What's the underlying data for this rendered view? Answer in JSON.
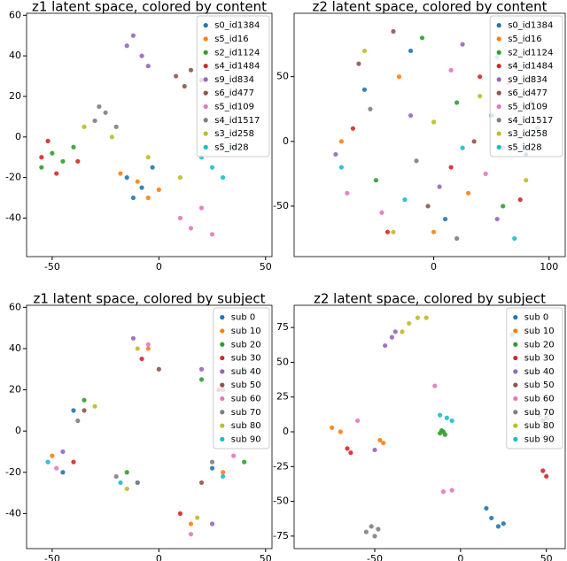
{
  "chart_data": [
    {
      "type": "scatter",
      "title": "z1 latent space, colored by content",
      "legend": "upper right",
      "xlim": [
        -62,
        53
      ],
      "ylim": [
        -59,
        61
      ],
      "xticks": [
        -50,
        0,
        50
      ],
      "yticks": [
        -40,
        -20,
        0,
        20,
        40,
        60
      ],
      "series": [
        {
          "name": "s0_id1384",
          "color": "#1f77b4",
          "x": [
            -15,
            -8,
            -3,
            -12
          ],
          "values": [
            -20,
            -25,
            -15,
            -30
          ]
        },
        {
          "name": "s5_id16",
          "color": "#ff7f0e",
          "x": [
            -10,
            -5,
            -18,
            0
          ],
          "values": [
            -22,
            -30,
            -18,
            -26
          ]
        },
        {
          "name": "s2_id1124",
          "color": "#2ca02c",
          "x": [
            -50,
            -45,
            -40,
            -55
          ],
          "values": [
            -8,
            -12,
            -5,
            -15
          ]
        },
        {
          "name": "s4_id1484",
          "color": "#d62728",
          "x": [
            -55,
            -48,
            -38,
            -52
          ],
          "values": [
            -10,
            -18,
            -12,
            -2
          ]
        },
        {
          "name": "s9_id834",
          "color": "#9467bd",
          "x": [
            -15,
            -8,
            -5,
            -12
          ],
          "values": [
            45,
            40,
            35,
            50
          ]
        },
        {
          "name": "s6_id477",
          "color": "#8c564b",
          "x": [
            8,
            12,
            15,
            20
          ],
          "values": [
            30,
            25,
            33,
            28
          ]
        },
        {
          "name": "s5_id109",
          "color": "#e377c2",
          "x": [
            10,
            15,
            20,
            25
          ],
          "values": [
            -40,
            -45,
            -35,
            -48
          ]
        },
        {
          "name": "s4_id1517",
          "color": "#7f7f7f",
          "x": [
            -30,
            -25,
            -20,
            -28
          ],
          "values": [
            8,
            12,
            5,
            15
          ]
        },
        {
          "name": "s3_id258",
          "color": "#bcbd22",
          "x": [
            -35,
            -22,
            -5,
            10
          ],
          "values": [
            5,
            0,
            -10,
            -20
          ]
        },
        {
          "name": "s5_id28",
          "color": "#17becf",
          "x": [
            20,
            25,
            30,
            35
          ],
          "values": [
            -10,
            -15,
            -20,
            -5
          ]
        }
      ]
    },
    {
      "type": "scatter",
      "title": "z2 latent space, colored by content",
      "legend": "upper right",
      "xlim": [
        -121,
        114
      ],
      "ylim": [
        -89,
        99
      ],
      "xticks": [
        0,
        100
      ],
      "yticks": [
        -50,
        0,
        50
      ],
      "series": [
        {
          "name": "s0_id1384",
          "color": "#1f77b4",
          "x": [
            -60,
            10,
            50,
            -20,
            80
          ],
          "values": [
            40,
            -60,
            20,
            70,
            -10
          ]
        },
        {
          "name": "s5_id16",
          "color": "#ff7f0e",
          "x": [
            -80,
            -30,
            30,
            70,
            0
          ],
          "values": [
            0,
            50,
            -40,
            60,
            -70
          ]
        },
        {
          "name": "s2_id1124",
          "color": "#2ca02c",
          "x": [
            -50,
            20,
            60,
            -10,
            90
          ],
          "values": [
            -30,
            30,
            -50,
            80,
            10
          ]
        },
        {
          "name": "s4_id1484",
          "color": "#d62728",
          "x": [
            -70,
            -40,
            40,
            15,
            75
          ],
          "values": [
            10,
            -70,
            50,
            -20,
            -45
          ]
        },
        {
          "name": "s9_id834",
          "color": "#9467bd",
          "x": [
            -85,
            -20,
            25,
            55,
            5
          ],
          "values": [
            -10,
            20,
            75,
            -60,
            -35
          ]
        },
        {
          "name": "s6_id477",
          "color": "#8c564b",
          "x": [
            -65,
            -5,
            35,
            85,
            -35
          ],
          "values": [
            60,
            -50,
            0,
            30,
            85
          ]
        },
        {
          "name": "s5_id109",
          "color": "#e377c2",
          "x": [
            -45,
            15,
            45,
            -75,
            65
          ],
          "values": [
            -55,
            55,
            -25,
            -40,
            45
          ]
        },
        {
          "name": "s4_id1517",
          "color": "#7f7f7f",
          "x": [
            -55,
            -15,
            20,
            60,
            95
          ],
          "values": [
            25,
            -15,
            -75,
            -5,
            70
          ]
        },
        {
          "name": "s3_id258",
          "color": "#bcbd22",
          "x": [
            -35,
            0,
            40,
            80,
            -60
          ],
          "values": [
            -70,
            15,
            35,
            -30,
            70
          ]
        },
        {
          "name": "s5_id28",
          "color": "#17becf",
          "x": [
            -25,
            25,
            55,
            -80,
            70
          ],
          "values": [
            -45,
            -5,
            65,
            -20,
            -75
          ]
        }
      ]
    },
    {
      "type": "scatter",
      "title": "z1 latent space, colored by subject",
      "legend": "upper right",
      "xlim": [
        -62,
        53
      ],
      "ylim": [
        -57,
        61
      ],
      "xticks": [
        -50,
        0,
        50
      ],
      "yticks": [
        -40,
        -20,
        0,
        20,
        40,
        60
      ],
      "series": [
        {
          "name": "sub 0",
          "color": "#1f77b4",
          "x": [
            -40,
            -10,
            25,
            -45
          ],
          "values": [
            10,
            -25,
            -18,
            -20
          ]
        },
        {
          "name": "sub 10",
          "color": "#ff7f0e",
          "x": [
            -50,
            -5,
            15,
            30
          ],
          "values": [
            -12,
            40,
            -45,
            -20
          ]
        },
        {
          "name": "sub 20",
          "color": "#2ca02c",
          "x": [
            -35,
            -15,
            20,
            40
          ],
          "values": [
            15,
            -20,
            25,
            -15
          ]
        },
        {
          "name": "sub 30",
          "color": "#d62728",
          "x": [
            -8,
            -40,
            10,
            28
          ],
          "values": [
            35,
            -15,
            -40,
            20
          ]
        },
        {
          "name": "sub 40",
          "color": "#9467bd",
          "x": [
            -12,
            -45,
            20,
            25
          ],
          "values": [
            45,
            -10,
            30,
            -45
          ]
        },
        {
          "name": "sub 50",
          "color": "#8c564b",
          "x": [
            0,
            -35,
            30,
            20
          ],
          "values": [
            30,
            10,
            20,
            -25
          ]
        },
        {
          "name": "sub 60",
          "color": "#e377c2",
          "x": [
            -5,
            -48,
            15,
            35
          ],
          "values": [
            42,
            -18,
            -50,
            -12
          ]
        },
        {
          "name": "sub 70",
          "color": "#7f7f7f",
          "x": [
            -20,
            -38,
            -10,
            25
          ],
          "values": [
            -22,
            5,
            -25,
            -15
          ]
        },
        {
          "name": "sub 80",
          "color": "#bcbd22",
          "x": [
            -30,
            -10,
            18,
            -15
          ],
          "values": [
            12,
            40,
            -42,
            -28
          ]
        },
        {
          "name": "sub 90",
          "color": "#17becf",
          "x": [
            -52,
            -18,
            30,
            40
          ],
          "values": [
            -15,
            -25,
            -22,
            30
          ]
        }
      ]
    },
    {
      "type": "scatter",
      "title": "z2 latent space, colored by subject",
      "legend": "upper right",
      "xlim": [
        -97,
        61
      ],
      "ylim": [
        -84,
        91
      ],
      "xticks": [
        -50,
        0,
        50
      ],
      "yticks": [
        -75,
        -50,
        -25,
        0,
        25,
        50,
        75
      ],
      "series": [
        {
          "name": "sub 0",
          "color": "#1f77b4",
          "x": [
            15,
            18,
            22,
            25
          ],
          "values": [
            -55,
            -62,
            -68,
            -66
          ]
        },
        {
          "name": "sub 10",
          "color": "#ff7f0e",
          "x": [
            -75,
            -70,
            -47,
            -45
          ],
          "values": [
            3,
            0,
            -6,
            -8
          ]
        },
        {
          "name": "sub 20",
          "color": "#2ca02c",
          "x": [
            -12,
            -10,
            -9,
            -11
          ],
          "values": [
            -1,
            0,
            -2,
            1
          ]
        },
        {
          "name": "sub 30",
          "color": "#d62728",
          "x": [
            -66,
            -64,
            48,
            50
          ],
          "values": [
            -12,
            -15,
            -28,
            -32
          ]
        },
        {
          "name": "sub 40",
          "color": "#9467bd",
          "x": [
            -44,
            -40,
            -38,
            -50
          ],
          "values": [
            62,
            68,
            72,
            -13
          ]
        },
        {
          "name": "sub 50",
          "color": "#8c564b",
          "x": [
            46,
            48,
            50,
            52
          ],
          "values": [
            12,
            8,
            10,
            13
          ]
        },
        {
          "name": "sub 60",
          "color": "#e377c2",
          "x": [
            -15,
            -5,
            -60,
            -10
          ],
          "values": [
            33,
            -42,
            8,
            -43
          ]
        },
        {
          "name": "sub 70",
          "color": "#7f7f7f",
          "x": [
            -55,
            -52,
            -50,
            -48
          ],
          "values": [
            -72,
            -68,
            -75,
            -70
          ]
        },
        {
          "name": "sub 80",
          "color": "#bcbd22",
          "x": [
            -34,
            -30,
            -25,
            -20
          ],
          "values": [
            72,
            78,
            82,
            82
          ]
        },
        {
          "name": "sub 90",
          "color": "#17becf",
          "x": [
            -12,
            -8,
            -5,
            30
          ],
          "values": [
            12,
            10,
            8,
            70
          ]
        }
      ]
    }
  ]
}
